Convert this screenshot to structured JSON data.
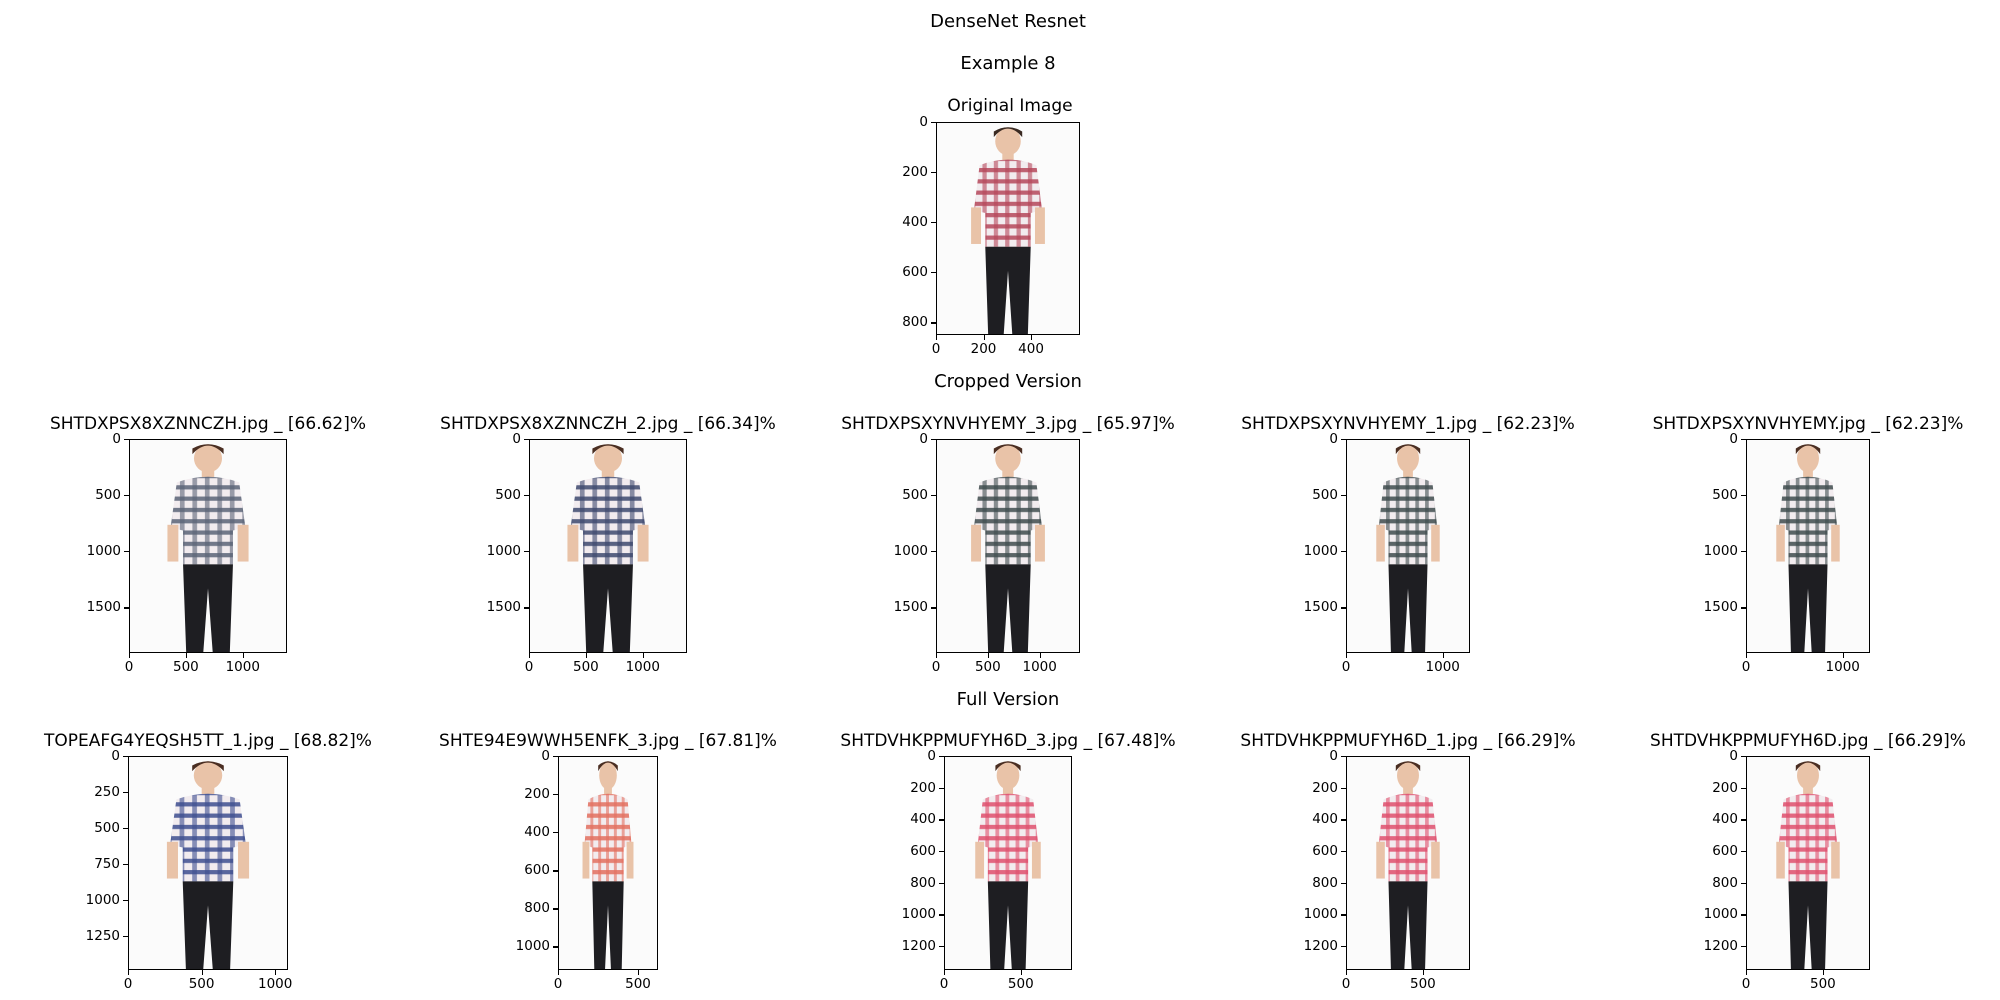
{
  "header": {
    "title": "DenseNet Resnet",
    "subtitle": "Example 8"
  },
  "original": {
    "title": "Original Image",
    "xticks": [
      "0",
      "200",
      "400"
    ],
    "yticks": [
      "0",
      "200",
      "400",
      "600",
      "800"
    ],
    "shirt_color": "#b5485a"
  },
  "sections": {
    "cropped_label": "Cropped Version",
    "full_label": "Full Version"
  },
  "cropped": [
    {
      "title": "SHTDXPSX8XZNNCZH.jpg _ [66.62]%",
      "xticks": [
        "0",
        "500",
        "1000"
      ],
      "yticks": [
        "0",
        "500",
        "1000",
        "1500"
      ],
      "shirt_color": "#5b6477"
    },
    {
      "title": "SHTDXPSX8XZNNCZH_2.jpg _ [66.34]%",
      "xticks": [
        "0",
        "500",
        "1000"
      ],
      "yticks": [
        "0",
        "500",
        "1000",
        "1500"
      ],
      "shirt_color": "#3e4a6e"
    },
    {
      "title": "SHTDXPSXYNVHYEMY_3.jpg _ [65.97]%",
      "xticks": [
        "0",
        "500",
        "1000"
      ],
      "yticks": [
        "0",
        "500",
        "1000",
        "1500"
      ],
      "shirt_color": "#3f4c4e"
    },
    {
      "title": "SHTDXPSXYNVHYEMY_1.jpg _ [62.23]%",
      "xticks": [
        "0",
        "1000"
      ],
      "yticks": [
        "0",
        "500",
        "1000",
        "1500"
      ],
      "shirt_color": "#3f4c4e"
    },
    {
      "title": "SHTDXPSXYNVHYEMY.jpg _ [62.23]%",
      "xticks": [
        "0",
        "1000"
      ],
      "yticks": [
        "0",
        "500",
        "1000",
        "1500"
      ],
      "shirt_color": "#3f4c4e"
    }
  ],
  "full": [
    {
      "title": "TOPEAFG4YEQSH5TT_1.jpg _ [68.82]%",
      "xticks": [
        "0",
        "500",
        "1000"
      ],
      "yticks": [
        "0",
        "250",
        "500",
        "750",
        "1000",
        "1250"
      ],
      "shirt_color": "#3e4f8f"
    },
    {
      "title": "SHTE94E9WWH5ENFK_3.jpg _ [67.81]%",
      "xticks": [
        "0",
        "500"
      ],
      "yticks": [
        "0",
        "200",
        "400",
        "600",
        "800",
        "1000"
      ],
      "shirt_color": "#e3705f"
    },
    {
      "title": "SHTDVHKPPMUFYH6D_3.jpg _ [67.48]%",
      "xticks": [
        "0",
        "500"
      ],
      "yticks": [
        "0",
        "200",
        "400",
        "600",
        "800",
        "1000",
        "1200"
      ],
      "shirt_color": "#e0506d"
    },
    {
      "title": "SHTDVHKPPMUFYH6D_1.jpg _ [66.29]%",
      "xticks": [
        "0",
        "500"
      ],
      "yticks": [
        "0",
        "200",
        "400",
        "600",
        "800",
        "1000",
        "1200"
      ],
      "shirt_color": "#e0506d"
    },
    {
      "title": "SHTDVHKPPMUFYH6D.jpg _ [66.29]%",
      "xticks": [
        "0",
        "500"
      ],
      "yticks": [
        "0",
        "200",
        "400",
        "600",
        "800",
        "1000",
        "1200"
      ],
      "shirt_color": "#e0506d"
    }
  ]
}
